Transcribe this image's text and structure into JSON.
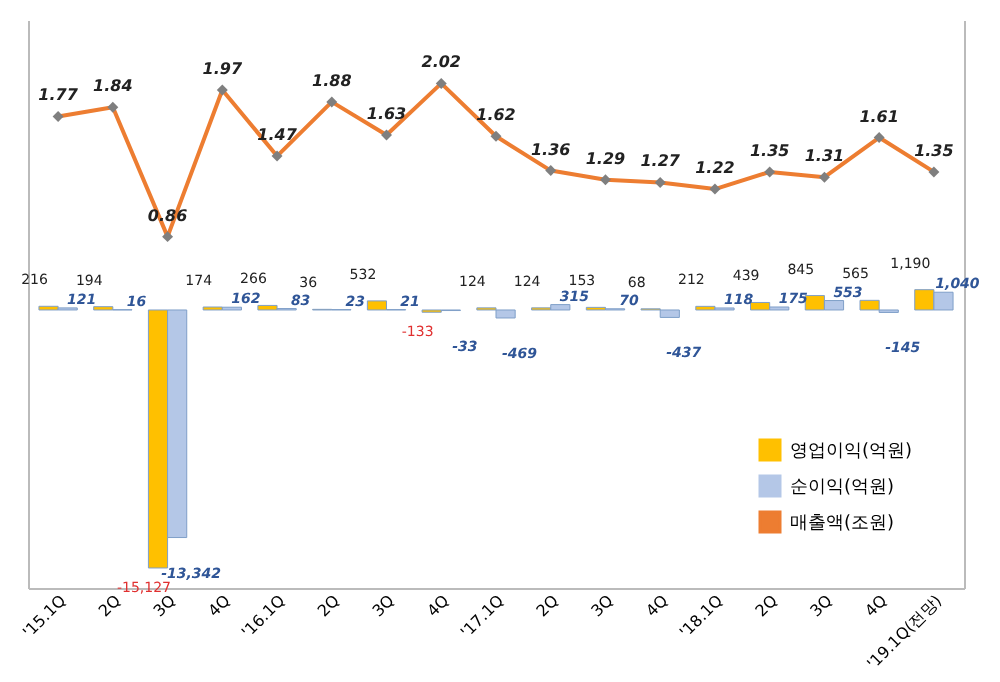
{
  "chart_data": {
    "type": "bar",
    "categories": [
      "'15.1Q",
      "2Q",
      "3Q",
      "4Q",
      "'16.1Q",
      "2Q",
      "3Q",
      "4Q",
      "'17.1Q",
      "2Q",
      "3Q",
      "4Q",
      "'18.1Q",
      "2Q",
      "3Q",
      "4Q",
      "'19.1Q(전망)"
    ],
    "series": [
      {
        "name": "영업이익(억원)",
        "color": "#ffc000",
        "values": [
          216,
          194,
          -15127,
          174,
          266,
          36,
          532,
          -133,
          124,
          124,
          153,
          68,
          212,
          439,
          845,
          565,
          1190
        ],
        "value_labels": [
          "216",
          "194",
          "-15,127",
          "174",
          "266",
          "36",
          "532",
          "-133",
          "124",
          "124",
          "153",
          "68",
          "212",
          "439",
          "845",
          "565",
          "1,190"
        ]
      },
      {
        "name": "순이익(억원)",
        "color": "#b4c7e7",
        "values": [
          121,
          16,
          -13342,
          162,
          83,
          23,
          21,
          -33,
          -469,
          315,
          70,
          -437,
          118,
          175,
          553,
          -145,
          1040
        ],
        "value_labels": [
          "121",
          "16",
          "-13,342",
          "162",
          "83",
          "23",
          "21",
          "-33",
          "-469",
          "315",
          "70",
          "-437",
          "118",
          "175",
          "553",
          "-145",
          "1,040"
        ]
      },
      {
        "name": "매출액(조원)",
        "type": "line",
        "axis": "y2",
        "color": "#ed7d31",
        "values": [
          1.77,
          1.84,
          0.86,
          1.97,
          1.47,
          1.88,
          1.63,
          2.02,
          1.62,
          1.36,
          1.29,
          1.27,
          1.22,
          1.35,
          1.31,
          1.61,
          1.35
        ]
      }
    ],
    "ylim": [
      -16300,
      17000
    ],
    "y2lim": [
      -1.8,
      2.5
    ],
    "data_labels": true,
    "tick_labels": "x",
    "marker": "diamond",
    "legend": "bottom right",
    "grid": false
  }
}
